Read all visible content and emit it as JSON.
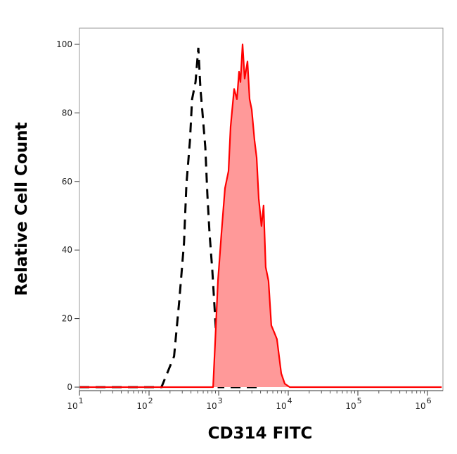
{
  "chart_data": {
    "type": "area",
    "title": "",
    "xlabel": "CD314 FITC",
    "ylabel": "Relative Cell Count",
    "x_scale": "log",
    "xlim": [
      9.8,
      1600000
    ],
    "ylim": [
      0,
      100
    ],
    "x_ticks": [
      {
        "base": "10",
        "exp": "1",
        "value": 10
      },
      {
        "base": "10",
        "exp": "2",
        "value": 100
      },
      {
        "base": "10",
        "exp": "3",
        "value": 1000
      },
      {
        "base": "10",
        "exp": "4",
        "value": 10000
      },
      {
        "base": "10",
        "exp": "5",
        "value": 100000
      },
      {
        "base": "10",
        "exp": "6",
        "value": 1000000
      }
    ],
    "y_ticks": [
      "0",
      "20",
      "40",
      "60",
      "80",
      "100"
    ],
    "grid": false,
    "series": [
      {
        "style": "dashed-line",
        "color": "#000000",
        "points": [
          [
            10,
            0
          ],
          [
            151,
            0
          ],
          [
            229,
            9
          ],
          [
            271,
            25
          ],
          [
            318,
            42
          ],
          [
            344,
            59
          ],
          [
            387,
            72
          ],
          [
            415,
            84
          ],
          [
            465,
            89
          ],
          [
            511,
            99
          ],
          [
            547,
            87
          ],
          [
            586,
            80
          ],
          [
            643,
            70
          ],
          [
            689,
            56
          ],
          [
            739,
            45
          ],
          [
            811,
            34
          ],
          [
            911,
            17
          ],
          [
            977,
            3
          ],
          [
            1000,
            0
          ],
          [
            4000,
            0
          ]
        ]
      },
      {
        "style": "filled",
        "color": "#ff0000",
        "fill": "#ff9999",
        "points": [
          [
            10,
            0
          ],
          [
            832,
            0
          ],
          [
            977,
            31
          ],
          [
            1097,
            45
          ],
          [
            1233,
            58
          ],
          [
            1385,
            63
          ],
          [
            1484,
            76
          ],
          [
            1668,
            87
          ],
          [
            1831,
            84
          ],
          [
            1963,
            92
          ],
          [
            2055,
            89
          ],
          [
            2205,
            100
          ],
          [
            2365,
            90
          ],
          [
            2597,
            95
          ],
          [
            2783,
            84
          ],
          [
            2984,
            81
          ],
          [
            3272,
            72
          ],
          [
            3509,
            67
          ],
          [
            3761,
            55
          ],
          [
            4126,
            47
          ],
          [
            4422,
            53
          ],
          [
            4740,
            35
          ],
          [
            5200,
            31
          ],
          [
            5712,
            18
          ],
          [
            6275,
            16
          ],
          [
            6882,
            14
          ],
          [
            7924,
            4
          ],
          [
            8900,
            1
          ],
          [
            10500,
            0
          ],
          [
            1600000,
            0
          ]
        ]
      }
    ]
  }
}
